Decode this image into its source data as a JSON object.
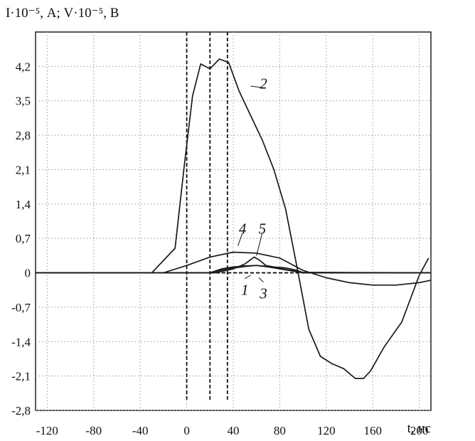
{
  "chart_data": {
    "type": "line",
    "ylabel": "I·10⁻⁵, А; V·10⁻⁵, В",
    "xlabel": "t, нс",
    "xlim": [
      -130,
      210
    ],
    "ylim": [
      -2.8,
      4.9
    ],
    "grid": true,
    "x_ticks": [
      "-120",
      "-80",
      "-40",
      "0",
      "40",
      "80",
      "120",
      "160",
      "200"
    ],
    "y_ticks": [
      "4,2",
      "3,5",
      "2,8",
      "2,1",
      "1,4",
      "0,7",
      "0",
      "-0,7",
      "-1,4",
      "-2,1",
      "-2,8"
    ],
    "x_tick_values": [
      -120,
      -80,
      -40,
      0,
      40,
      80,
      120,
      160,
      200
    ],
    "y_tick_values": [
      4.2,
      3.5,
      2.8,
      2.1,
      1.4,
      0.7,
      0,
      -0.7,
      -1.4,
      -2.1,
      -2.8
    ],
    "vertical_markers": [
      0,
      20,
      35
    ],
    "series": [
      {
        "name": "1",
        "label_at": [
          50,
          -0.35
        ],
        "leader_to": [
          55,
          -0.05
        ],
        "x": [
          -130,
          20,
          30,
          40,
          50,
          60,
          70,
          80,
          90,
          100,
          210
        ],
        "y": [
          0,
          0,
          0.08,
          0.12,
          0.14,
          0.15,
          0.12,
          0.08,
          0.04,
          0,
          0
        ]
      },
      {
        "name": "2",
        "label_at": [
          66,
          3.85
        ],
        "leader_to": [
          55,
          3.8
        ],
        "x": [
          -130,
          -30,
          -10,
          -2,
          5,
          12,
          20,
          28,
          36,
          45,
          55,
          65,
          75,
          85,
          95,
          105,
          115,
          125,
          135,
          145,
          152,
          158,
          170,
          185,
          200,
          208
        ],
        "y": [
          0,
          0,
          0.5,
          2.2,
          3.6,
          4.25,
          4.15,
          4.35,
          4.28,
          3.7,
          3.2,
          2.7,
          2.1,
          1.3,
          0.1,
          -1.15,
          -1.7,
          -1.85,
          -1.95,
          -2.15,
          -2.15,
          -2.0,
          -1.5,
          -1.0,
          -0.05,
          0.3
        ]
      },
      {
        "name": "3",
        "label_at": [
          66,
          -0.42
        ],
        "leader_to": [
          62,
          -0.1
        ],
        "x": [
          -130,
          20,
          35,
          50,
          60,
          70,
          80,
          90,
          100,
          210
        ],
        "y": [
          0,
          0,
          0.08,
          0.13,
          0.15,
          0.13,
          0.09,
          0.05,
          0.01,
          0
        ]
      },
      {
        "name": "4",
        "label_at": [
          48,
          0.9
        ],
        "leader_to": [
          44,
          0.55
        ],
        "x": [
          -130,
          -20,
          0,
          20,
          40,
          60,
          80,
          100,
          120,
          140,
          160,
          180,
          200,
          210
        ],
        "y": [
          0,
          0,
          0.15,
          0.32,
          0.42,
          0.4,
          0.3,
          0.05,
          -0.1,
          -0.2,
          -0.25,
          -0.25,
          -0.2,
          -0.15
        ]
      },
      {
        "name": "5",
        "label_at": [
          65,
          0.9
        ],
        "leader_to": [
          60,
          0.35
        ],
        "x": [
          -130,
          25,
          40,
          50,
          58,
          63,
          68,
          75,
          85,
          95,
          100,
          210
        ],
        "y": [
          0,
          0,
          0.08,
          0.18,
          0.32,
          0.25,
          0.15,
          0.12,
          0.1,
          0.05,
          0,
          0
        ]
      }
    ]
  }
}
